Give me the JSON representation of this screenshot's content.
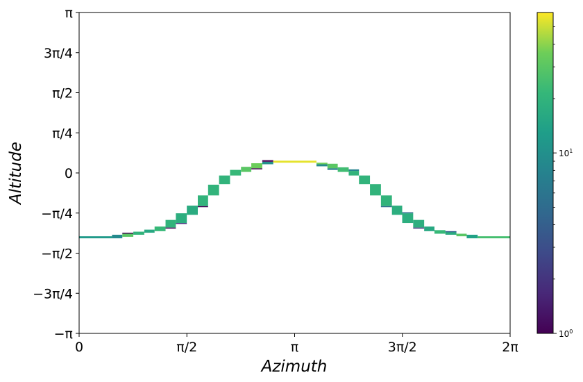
{
  "chart_data": {
    "type": "heatmap",
    "xlabel": "Azimuth",
    "ylabel": "Altitude",
    "xlim": [
      0,
      6.2832
    ],
    "ylim": [
      -3.1416,
      3.1416
    ],
    "x_ticks": [
      {
        "value": 0,
        "label": "0"
      },
      {
        "value": 1.5708,
        "label": "π/2"
      },
      {
        "value": 3.1416,
        "label": "π"
      },
      {
        "value": 4.7124,
        "label": "3π/2"
      },
      {
        "value": 6.2832,
        "label": "2π"
      }
    ],
    "y_ticks": [
      {
        "value": -3.1416,
        "label": "−π"
      },
      {
        "value": -2.3562,
        "label": "−3π/4"
      },
      {
        "value": -1.5708,
        "label": "−π/2"
      },
      {
        "value": -0.7854,
        "label": "−π/4"
      },
      {
        "value": 0,
        "label": "0"
      },
      {
        "value": 0.7854,
        "label": "π/4"
      },
      {
        "value": 1.5708,
        "label": "π/2"
      },
      {
        "value": 2.3562,
        "label": "3π/4"
      },
      {
        "value": 3.1416,
        "label": "π"
      }
    ],
    "colorbar": {
      "scale": "log",
      "colormap": "viridis",
      "range": [
        1,
        60
      ],
      "ticks": [
        {
          "value": 1,
          "base": "10",
          "exp": "0"
        },
        {
          "value": 10,
          "base": "10",
          "exp": "1"
        }
      ],
      "minor_ticks": [
        2,
        3,
        4,
        5,
        6,
        7,
        8,
        9,
        20,
        30,
        40,
        50
      ]
    },
    "cells": [
      {
        "x0": 0.0,
        "x1": 0.48,
        "y0": -1.28,
        "y1": -1.24,
        "value": 12
      },
      {
        "x0": 0.48,
        "x1": 0.63,
        "y0": -1.28,
        "y1": -1.21,
        "value": 9
      },
      {
        "x0": 0.63,
        "x1": 0.79,
        "y0": -1.25,
        "y1": -1.19,
        "value": 30
      },
      {
        "x0": 0.63,
        "x1": 0.79,
        "y0": -1.19,
        "y1": -1.17,
        "value": 1
      },
      {
        "x0": 0.79,
        "x1": 0.95,
        "y0": -1.21,
        "y1": -1.15,
        "value": 20
      },
      {
        "x0": 0.95,
        "x1": 1.1,
        "y0": -1.17,
        "y1": -1.11,
        "value": 16
      },
      {
        "x0": 1.1,
        "x1": 1.26,
        "y0": -1.14,
        "y1": -1.05,
        "value": 22
      },
      {
        "x0": 1.26,
        "x1": 1.41,
        "y0": -1.07,
        "y1": -0.92,
        "value": 20
      },
      {
        "x0": 1.26,
        "x1": 1.41,
        "y0": -1.09,
        "y1": -1.07,
        "value": 1
      },
      {
        "x0": 1.41,
        "x1": 1.57,
        "y0": -0.98,
        "y1": -0.79,
        "value": 18
      },
      {
        "x0": 1.41,
        "x1": 1.57,
        "y0": -1.0,
        "y1": -0.98,
        "value": 2
      },
      {
        "x0": 1.57,
        "x1": 1.73,
        "y0": -0.82,
        "y1": -0.64,
        "value": 17
      },
      {
        "x0": 1.73,
        "x1": 1.88,
        "y0": -0.65,
        "y1": -0.44,
        "value": 20
      },
      {
        "x0": 1.73,
        "x1": 1.88,
        "y0": -0.67,
        "y1": -0.65,
        "value": 1
      },
      {
        "x0": 1.88,
        "x1": 2.04,
        "y0": -0.44,
        "y1": -0.23,
        "value": 20
      },
      {
        "x0": 2.04,
        "x1": 2.2,
        "y0": -0.22,
        "y1": -0.05,
        "value": 20
      },
      {
        "x0": 2.2,
        "x1": 2.36,
        "y0": -0.05,
        "y1": 0.06,
        "value": 22
      },
      {
        "x0": 2.36,
        "x1": 2.51,
        "y0": 0.02,
        "y1": 0.12,
        "value": 30
      },
      {
        "x0": 2.51,
        "x1": 2.67,
        "y0": 0.09,
        "y1": 0.19,
        "value": 35
      },
      {
        "x0": 2.51,
        "x1": 2.67,
        "y0": 0.07,
        "y1": 0.09,
        "value": 1
      },
      {
        "x0": 2.67,
        "x1": 2.83,
        "y0": 0.17,
        "y1": 0.22,
        "value": 10
      },
      {
        "x0": 2.67,
        "x1": 2.83,
        "y0": 0.22,
        "y1": 0.25,
        "value": 1
      },
      {
        "x0": 2.83,
        "x1": 3.46,
        "y0": 0.2,
        "y1": 0.24,
        "value": 55
      },
      {
        "x0": 3.46,
        "x1": 3.62,
        "y0": 0.17,
        "y1": 0.2,
        "value": 35
      },
      {
        "x0": 3.46,
        "x1": 3.62,
        "y0": 0.13,
        "y1": 0.17,
        "value": 9
      },
      {
        "x0": 3.62,
        "x1": 3.77,
        "y0": 0.09,
        "y1": 0.18,
        "value": 30
      },
      {
        "x0": 3.62,
        "x1": 3.77,
        "y0": 0.06,
        "y1": 0.09,
        "value": 7
      },
      {
        "x0": 3.77,
        "x1": 3.93,
        "y0": 0.02,
        "y1": 0.11,
        "value": 24
      },
      {
        "x0": 3.93,
        "x1": 4.08,
        "y0": -0.05,
        "y1": 0.04,
        "value": 20
      },
      {
        "x0": 3.93,
        "x1": 4.08,
        "y0": 0.04,
        "y1": 0.07,
        "value": 8
      },
      {
        "x0": 4.08,
        "x1": 4.24,
        "y0": -0.22,
        "y1": -0.05,
        "value": 20
      },
      {
        "x0": 4.24,
        "x1": 4.4,
        "y0": -0.44,
        "y1": -0.22,
        "value": 20
      },
      {
        "x0": 4.4,
        "x1": 4.56,
        "y0": -0.65,
        "y1": -0.44,
        "value": 20
      },
      {
        "x0": 4.4,
        "x1": 4.56,
        "y0": -0.67,
        "y1": -0.65,
        "value": 5
      },
      {
        "x0": 4.56,
        "x1": 4.71,
        "y0": -0.82,
        "y1": -0.64,
        "value": 18
      },
      {
        "x0": 4.71,
        "x1": 4.87,
        "y0": -0.98,
        "y1": -0.79,
        "value": 18
      },
      {
        "x0": 4.71,
        "x1": 4.87,
        "y0": -0.79,
        "y1": -0.77,
        "value": 5
      },
      {
        "x0": 4.87,
        "x1": 5.03,
        "y0": -1.07,
        "y1": -0.92,
        "value": 18
      },
      {
        "x0": 4.87,
        "x1": 5.03,
        "y0": -1.09,
        "y1": -1.07,
        "value": 2
      },
      {
        "x0": 5.03,
        "x1": 5.18,
        "y0": -1.14,
        "y1": -1.05,
        "value": 16
      },
      {
        "x0": 5.18,
        "x1": 5.34,
        "y0": -1.19,
        "y1": -1.12,
        "value": 22
      },
      {
        "x0": 5.34,
        "x1": 5.5,
        "y0": -1.21,
        "y1": -1.15,
        "value": 17
      },
      {
        "x0": 5.34,
        "x1": 5.5,
        "y0": -1.16,
        "y1": -1.14,
        "value": 4
      },
      {
        "x0": 5.5,
        "x1": 5.65,
        "y0": -1.24,
        "y1": -1.19,
        "value": 30
      },
      {
        "x0": 5.65,
        "x1": 5.81,
        "y0": -1.28,
        "y1": -1.21,
        "value": 14
      },
      {
        "x0": 5.81,
        "x1": 6.2832,
        "y0": -1.28,
        "y1": -1.24,
        "value": 25
      }
    ]
  }
}
